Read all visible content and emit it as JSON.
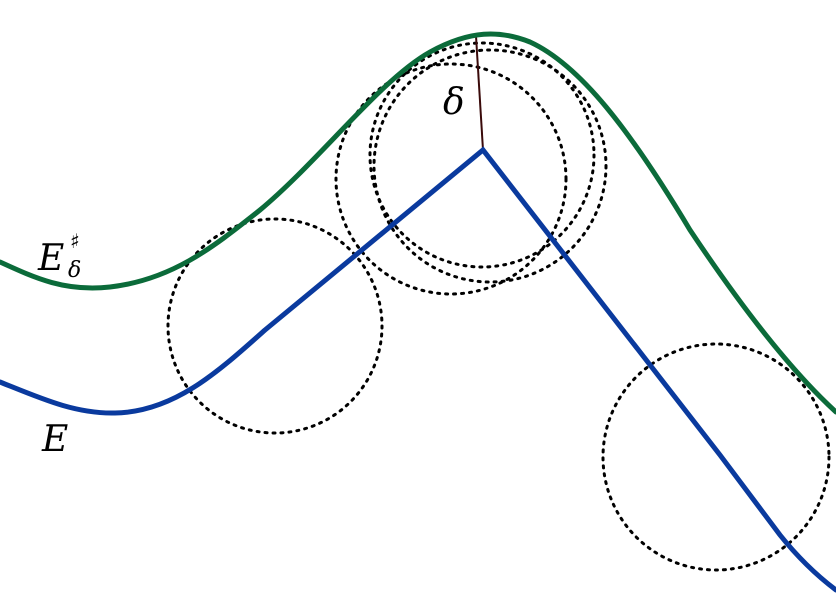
{
  "diagram": {
    "labels": {
      "offset_curve": "E",
      "offset_superscript": "♯",
      "offset_subscript": "δ",
      "original_curve": "E",
      "radius": "δ"
    },
    "colors": {
      "offset_curve": "#0b6b3a",
      "original_curve": "#0a3a9e",
      "radius_segment": "#3a0a0a",
      "circles": "#000000",
      "background": "#ffffff"
    }
  }
}
